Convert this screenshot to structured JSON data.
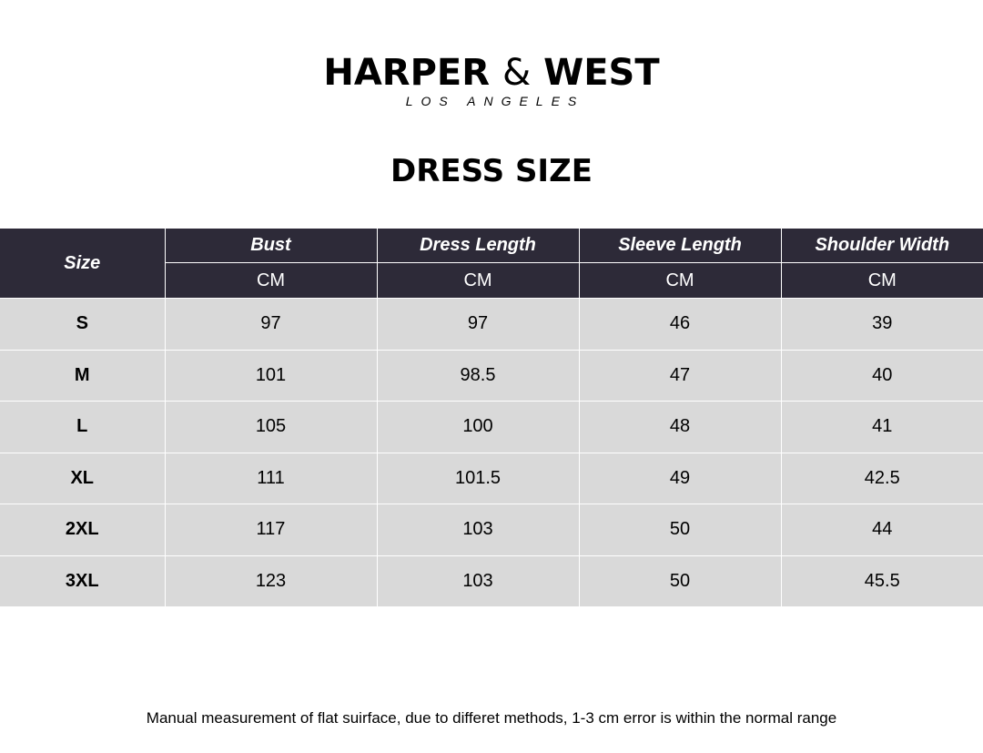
{
  "brand": {
    "name_left": "HARPER",
    "amp": "&",
    "name_right": "WEST",
    "tagline": "LOS ANGELES"
  },
  "title": "DRESS SIZE",
  "table": {
    "size_header": "Size",
    "columns": [
      {
        "label": "Bust",
        "unit": "CM"
      },
      {
        "label": "Dress Length",
        "unit": "CM"
      },
      {
        "label": "Sleeve Length",
        "unit": "CM"
      },
      {
        "label": "Shoulder Width",
        "unit": "CM"
      }
    ],
    "rows": [
      [
        "S",
        "97",
        "97",
        "46",
        "39"
      ],
      [
        "M",
        "101",
        "98.5",
        "47",
        "40"
      ],
      [
        "L",
        "105",
        "100",
        "48",
        "41"
      ],
      [
        "XL",
        "111",
        "101.5",
        "49",
        "42.5"
      ],
      [
        "2XL",
        "117",
        "103",
        "50",
        "44"
      ],
      [
        "3XL",
        "123",
        "103",
        "50",
        "45.5"
      ]
    ]
  },
  "note": "Manual measurement of flat suirface, due to differet methods, 1-3 cm error is within the normal range",
  "colors": {
    "header_bg": "#2d2a38",
    "row_bg": "#d9d9d9"
  }
}
